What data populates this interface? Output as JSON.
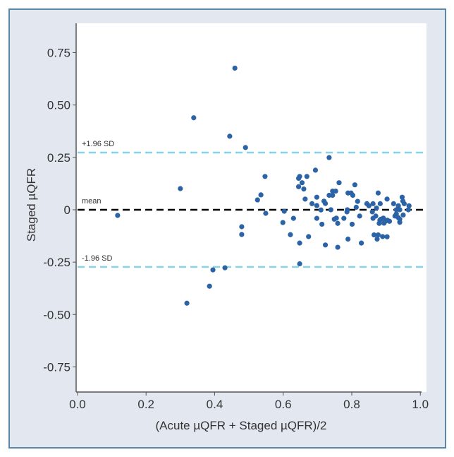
{
  "chart_data": {
    "type": "scatter",
    "title": "",
    "xlabel": "(Acute µQFR + Staged µQFR)/2",
    "ylabel": "Staged µQFR",
    "xlim": [
      -0.004,
      1.018
    ],
    "ylim": [
      -0.87,
      0.89
    ],
    "xticks": [
      0,
      0.2,
      0.4,
      0.6,
      0.8,
      1.0
    ],
    "xtick_labels": [
      "0.0",
      "0.2",
      "0.4",
      "0.6",
      "0.8",
      "1.0"
    ],
    "yticks": [
      0.75,
      0.5,
      0.25,
      0,
      -0.25,
      -0.5,
      -0.75
    ],
    "ytick_labels": [
      "0.75",
      "0.50",
      "0.25",
      "0",
      "-0.25",
      "-0.50",
      "-0.75"
    ],
    "reference_lines": [
      {
        "label": "+1.96 SD",
        "y": 0.273,
        "color": "#86d3ea",
        "style": "dashed"
      },
      {
        "label": "mean",
        "y": 0,
        "color": "#000000",
        "style": "dashed"
      },
      {
        "label": "-1.96 SD",
        "y": -0.273,
        "color": "#86d3ea",
        "style": "dashed"
      }
    ],
    "point_color": "#2b63a6",
    "grid": false,
    "points": [
      [
        0.117,
        -0.027
      ],
      [
        0.3,
        0.101
      ],
      [
        0.339,
        0.439
      ],
      [
        0.319,
        -0.446
      ],
      [
        0.385,
        -0.365
      ],
      [
        0.395,
        -0.287
      ],
      [
        0.43,
        -0.277
      ],
      [
        0.444,
        0.351
      ],
      [
        0.459,
        0.676
      ],
      [
        0.49,
        0.297
      ],
      [
        0.479,
        -0.081
      ],
      [
        0.479,
        -0.118
      ],
      [
        0.525,
        0.047
      ],
      [
        0.535,
        0.071
      ],
      [
        0.547,
        0.159
      ],
      [
        0.549,
        -0.017
      ],
      [
        0.599,
        -0.061
      ],
      [
        0.603,
        -0.007
      ],
      [
        0.734,
        0.249
      ],
      [
        0.694,
        0.189
      ],
      [
        0.648,
        0.159
      ],
      [
        0.645,
        0.15
      ],
      [
        0.669,
        0.159
      ],
      [
        0.655,
        0.129
      ],
      [
        0.645,
        0.11
      ],
      [
        0.66,
        0.099
      ],
      [
        0.763,
        0.129
      ],
      [
        0.809,
        0.119
      ],
      [
        0.744,
        0.089
      ],
      [
        0.753,
        0.089
      ],
      [
        0.734,
        0.069
      ],
      [
        0.744,
        0.069
      ],
      [
        0.789,
        0.08
      ],
      [
        0.798,
        0.08
      ],
      [
        0.803,
        0.069
      ],
      [
        0.877,
        0.08
      ],
      [
        0.664,
        0.051
      ],
      [
        0.698,
        0.06
      ],
      [
        0.719,
        0.041
      ],
      [
        0.723,
        0.03
      ],
      [
        0.684,
        0.029
      ],
      [
        0.698,
        0.02
      ],
      [
        0.71,
        -0.001
      ],
      [
        0.739,
        0.0
      ],
      [
        0.787,
        0.0
      ],
      [
        0.817,
        0.04
      ],
      [
        0.813,
        0.012
      ],
      [
        0.844,
        0.029
      ],
      [
        0.85,
        0.019
      ],
      [
        0.862,
        0.029
      ],
      [
        0.883,
        0.029
      ],
      [
        0.872,
        0.008
      ],
      [
        0.903,
        0.051
      ],
      [
        0.922,
        0.029
      ],
      [
        0.947,
        0.06
      ],
      [
        0.949,
        0.041
      ],
      [
        0.953,
        0.029
      ],
      [
        0.936,
        0.019
      ],
      [
        0.967,
        0.019
      ],
      [
        0.93,
        0.0
      ],
      [
        0.94,
        0.0
      ],
      [
        0.965,
        0.0
      ],
      [
        0.63,
        -0.041
      ],
      [
        0.698,
        -0.041
      ],
      [
        0.786,
        -0.01
      ],
      [
        0.823,
        -0.03
      ],
      [
        0.86,
        -0.01
      ],
      [
        0.862,
        -0.041
      ],
      [
        0.87,
        -0.03
      ],
      [
        0.882,
        -0.05
      ],
      [
        0.88,
        -0.065
      ],
      [
        0.885,
        -0.045
      ],
      [
        0.892,
        -0.04
      ],
      [
        0.898,
        -0.055
      ],
      [
        0.904,
        -0.05
      ],
      [
        0.91,
        -0.055
      ],
      [
        0.894,
        -0.064
      ],
      [
        0.93,
        -0.02
      ],
      [
        0.926,
        -0.03
      ],
      [
        0.936,
        -0.038
      ],
      [
        0.94,
        -0.045
      ],
      [
        0.94,
        -0.06
      ],
      [
        0.95,
        -0.025
      ],
      [
        0.713,
        -0.069
      ],
      [
        0.749,
        -0.045
      ],
      [
        0.755,
        -0.04
      ],
      [
        0.759,
        -0.065
      ],
      [
        0.777,
        -0.041
      ],
      [
        0.801,
        -0.069
      ],
      [
        0.621,
        -0.119
      ],
      [
        0.674,
        -0.128
      ],
      [
        0.648,
        -0.159
      ],
      [
        0.723,
        -0.168
      ],
      [
        0.759,
        -0.179
      ],
      [
        0.789,
        -0.14
      ],
      [
        0.828,
        -0.159
      ],
      [
        0.865,
        -0.12
      ],
      [
        0.877,
        -0.12
      ],
      [
        0.89,
        -0.128
      ],
      [
        0.874,
        -0.14
      ],
      [
        0.903,
        -0.129
      ],
      [
        0.648,
        -0.258
      ]
    ]
  }
}
